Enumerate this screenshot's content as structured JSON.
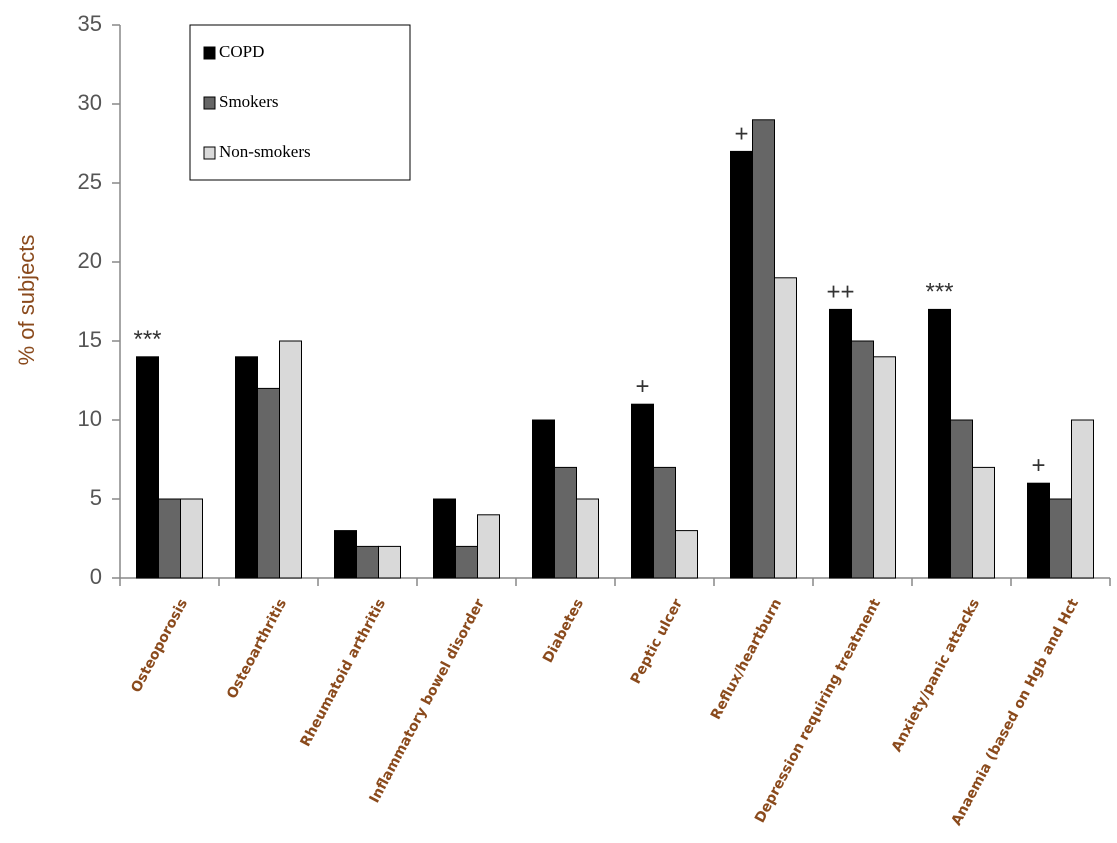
{
  "chart_data": {
    "type": "bar",
    "y_label": "% of subjects",
    "categories": [
      "Osteoporosis",
      "Osteoarthritis",
      "Rheumatoid arthritis",
      "Inflammatory bowel disorder",
      "Diabetes",
      "Peptic ulcer",
      "Reflux/heartburn",
      "Depression requiring treatment",
      "Anxiety/panic attacks",
      "Anaemia (based on Hgb and Hct"
    ],
    "series": [
      {
        "name": "COPD",
        "color": "#000000",
        "values": [
          14,
          14,
          3,
          5,
          10,
          11,
          27,
          17,
          17,
          6
        ]
      },
      {
        "name": "Smokers",
        "color": "#666666",
        "values": [
          5,
          12,
          2,
          2,
          7,
          7,
          29,
          15,
          10,
          5
        ]
      },
      {
        "name": "Non-smokers",
        "color": "#d9d9d9",
        "values": [
          5,
          15,
          2,
          4,
          5,
          3,
          19,
          14,
          7,
          10
        ]
      }
    ],
    "significance": [
      "***",
      null,
      null,
      null,
      null,
      "+",
      "+",
      "++",
      "***",
      "+"
    ],
    "ylim": [
      0,
      35
    ],
    "yticks": [
      0,
      5,
      10,
      15,
      20,
      25,
      30,
      35
    ],
    "grid": false,
    "legend": "top-left"
  }
}
